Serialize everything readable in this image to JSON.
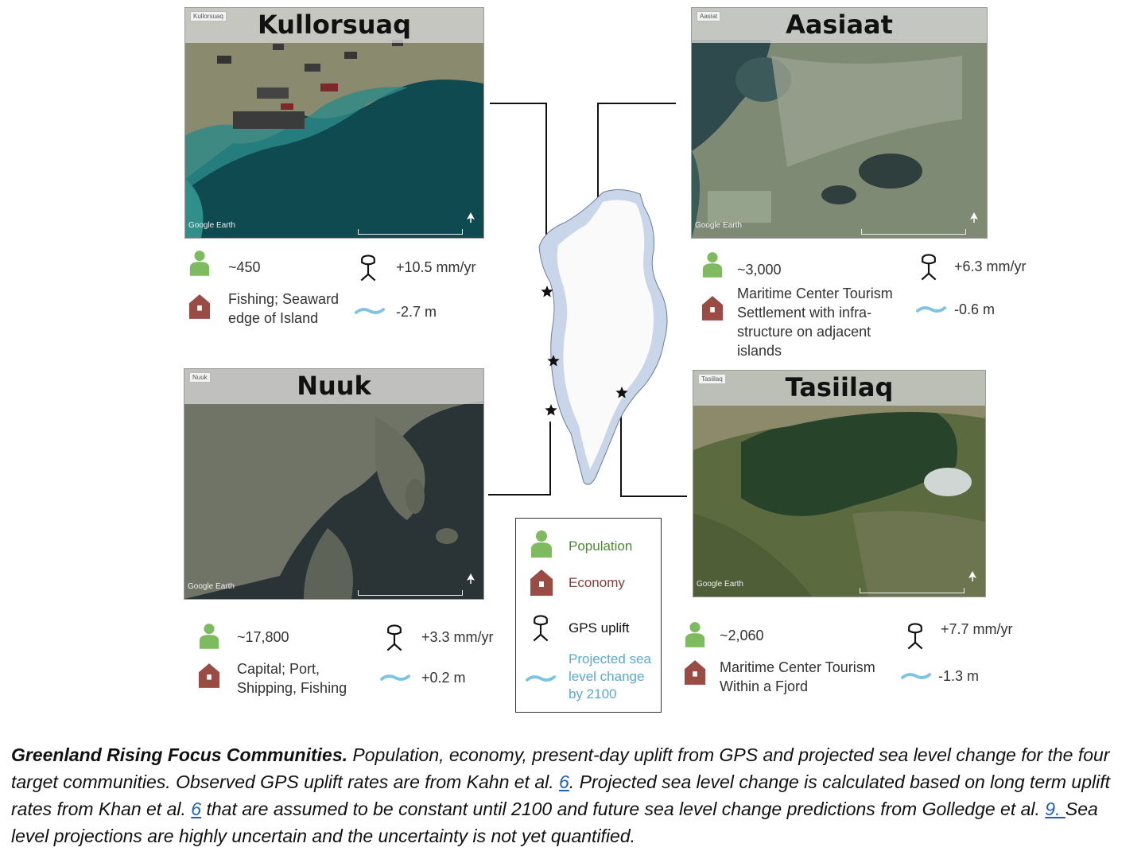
{
  "communities": {
    "kullorsuaq": {
      "name": "Kullorsuaq",
      "tag": "Kullorsuaq",
      "population": "~450",
      "economy": "Fishing; Seaward edge of Island",
      "uplift": "+10.5 mm/yr",
      "sea_level": "-2.7 m"
    },
    "aasiaat": {
      "name": "Aasiaat",
      "tag": "Aasiat",
      "population": "~3,000",
      "economy": "Maritime Center Tourism Settlement with infra-structure on adjacent islands",
      "uplift": "+6.3 mm/yr",
      "sea_level": "-0.6 m"
    },
    "nuuk": {
      "name": "Nuuk",
      "tag": "Nuuk",
      "population": "~17,800",
      "economy": "Capital; Port, Shipping, Fishing",
      "uplift": "+3.3 mm/yr",
      "sea_level": "+0.2 m"
    },
    "tasiilaq": {
      "name": "Tasiilaq",
      "tag": "Tasiilaq",
      "population": "~2,060",
      "economy": "Maritime Center Tourism Within  a Fjord",
      "uplift": "+7.7 mm/yr",
      "sea_level": "-1.3 m"
    }
  },
  "imagery_credit": "Google Earth",
  "legend": {
    "population": "Population",
    "economy": "Economy",
    "gps": "GPS uplift",
    "sea_level": "Projected sea level change by 2100",
    "colors": {
      "population": "#7dbb5e",
      "economy": "#9a4b44",
      "gps": "#1a1a1a",
      "sea_level": "#7ec4e2",
      "population_label": "#4d8a35",
      "economy_label": "#8a3e38",
      "sea_level_label": "#5aa9d0"
    }
  },
  "caption": {
    "bold": "Greenland Rising Focus Communities.",
    "part1": " Population, economy, present-day uplift from GPS and projected sea level change for the four target communities. Observed GPS uplift rates are from Kahn et al. ",
    "ref1": "6",
    "part2": ". Projected sea level change is calculated based on long term uplift rates from Khan et al. ",
    "ref2": "6",
    "part3": " that are assumed to be constant until 2100 and future sea level change predictions from Golledge et al. ",
    "ref3": "9. ",
    "part4": "Sea level projections are highly uncertain and the uncertainty is not yet quantified."
  }
}
